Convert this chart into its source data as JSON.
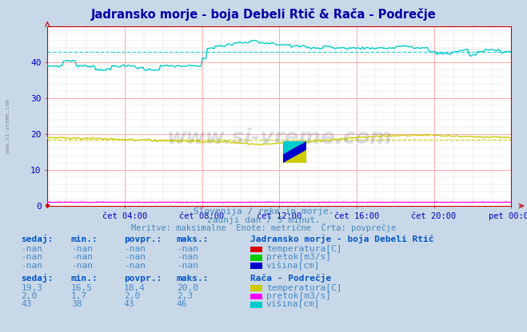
{
  "title_display": "Jadransko morje - boja Debeli Rtič & Rača - Podrečje",
  "outer_bg_color": "#c8d8e8",
  "plot_bg_color": "#ffffff",
  "grid_color": "#ffaaaa",
  "grid_color2": "#dddddd",
  "axis_color": "#cc0000",
  "tick_color": "#0000cc",
  "ylim": [
    0,
    50
  ],
  "yticks": [
    0,
    10,
    20,
    30,
    40
  ],
  "xtick_positions": [
    4,
    8,
    12,
    16,
    20,
    24
  ],
  "xtick_labels_display": [
    "čet 04:00",
    "čet 08:00",
    "čet 12:00",
    "čet 16:00",
    "čet 20:00",
    "pet 00:00"
  ],
  "num_points": 288,
  "subtitle1": "Slovenija / reke in morje.",
  "subtitle2": "zadnji dan / 5 minut.",
  "subtitle3": "Meritve: maksimalne  Enote: metrične  Črta: povprečje",
  "watermark": "www.si-vreme.com",
  "legend1_title": "Jadransko morje - boja Debeli Rtič",
  "legend2_title": "Rača - Podrečje",
  "legend1_items": [
    "temperatura[C]",
    "pretok[m3/s]",
    "višina[cm]"
  ],
  "legend1_colors": [
    "#dd0000",
    "#00cc00",
    "#0000cc"
  ],
  "legend2_items": [
    "temperatura[C]",
    "pretok[m3/s]",
    "višina[cm]"
  ],
  "legend2_colors": [
    "#cccc00",
    "#ff00ff",
    "#00cccc"
  ],
  "legend1_values": [
    "-nan",
    "-nan",
    "-nan"
  ],
  "legend1_min": [
    "-nan",
    "-nan",
    "-nan"
  ],
  "legend1_povpr": [
    "-nan",
    "-nan",
    "-nan"
  ],
  "legend1_maks": [
    "-nan",
    "-nan",
    "-nan"
  ],
  "legend2_values": [
    "19,3",
    "2,0",
    "43"
  ],
  "legend2_min": [
    "16,5",
    "1,7",
    "38"
  ],
  "legend2_povpr": [
    "18,4",
    "2,0",
    "43"
  ],
  "legend2_maks": [
    "20,0",
    "2,3",
    "46"
  ],
  "col_headers": [
    "sedaj:",
    "min.:",
    "povpr.:",
    "maks.:"
  ],
  "temp_avg": 18.4,
  "visina_avg": 43.0,
  "pretok_avg": 2.0
}
